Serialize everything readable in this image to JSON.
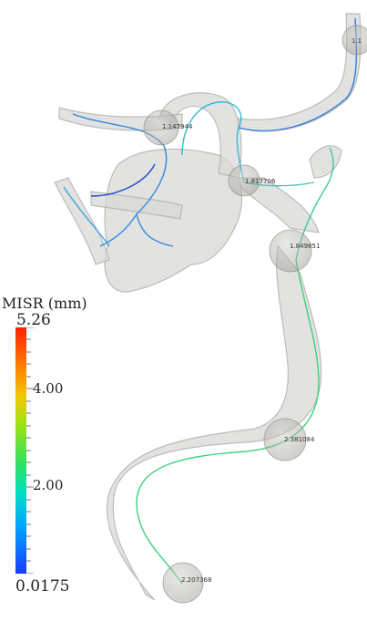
{
  "colorbar": {
    "title": "MISR (mm)",
    "max_label": "5.26",
    "mid_high_label": "4.00",
    "mid_low_label": "2.00",
    "min_label": "0.0175",
    "max_value": 5.26,
    "min_value": 0.0175,
    "colors": [
      "#1a3cff",
      "#00a8ff",
      "#00e0c0",
      "#33e060",
      "#a8e010",
      "#f0c800",
      "#ff8000",
      "#ff2000"
    ]
  },
  "radius_markers": [
    {
      "label": "1.147944"
    },
    {
      "label": "1.817706"
    },
    {
      "label": "1.849851"
    },
    {
      "label": "2.381084"
    },
    {
      "label": "2.207368"
    },
    {
      "label": "1.1"
    }
  ],
  "colors": {
    "vessel_surface": "#d9d9d6",
    "vessel_outline": "#a8a8a4",
    "centerline_green": "#3ed17a",
    "centerline_blue": "#2f7fe0",
    "marker_sphere": "#b7b5ae"
  }
}
